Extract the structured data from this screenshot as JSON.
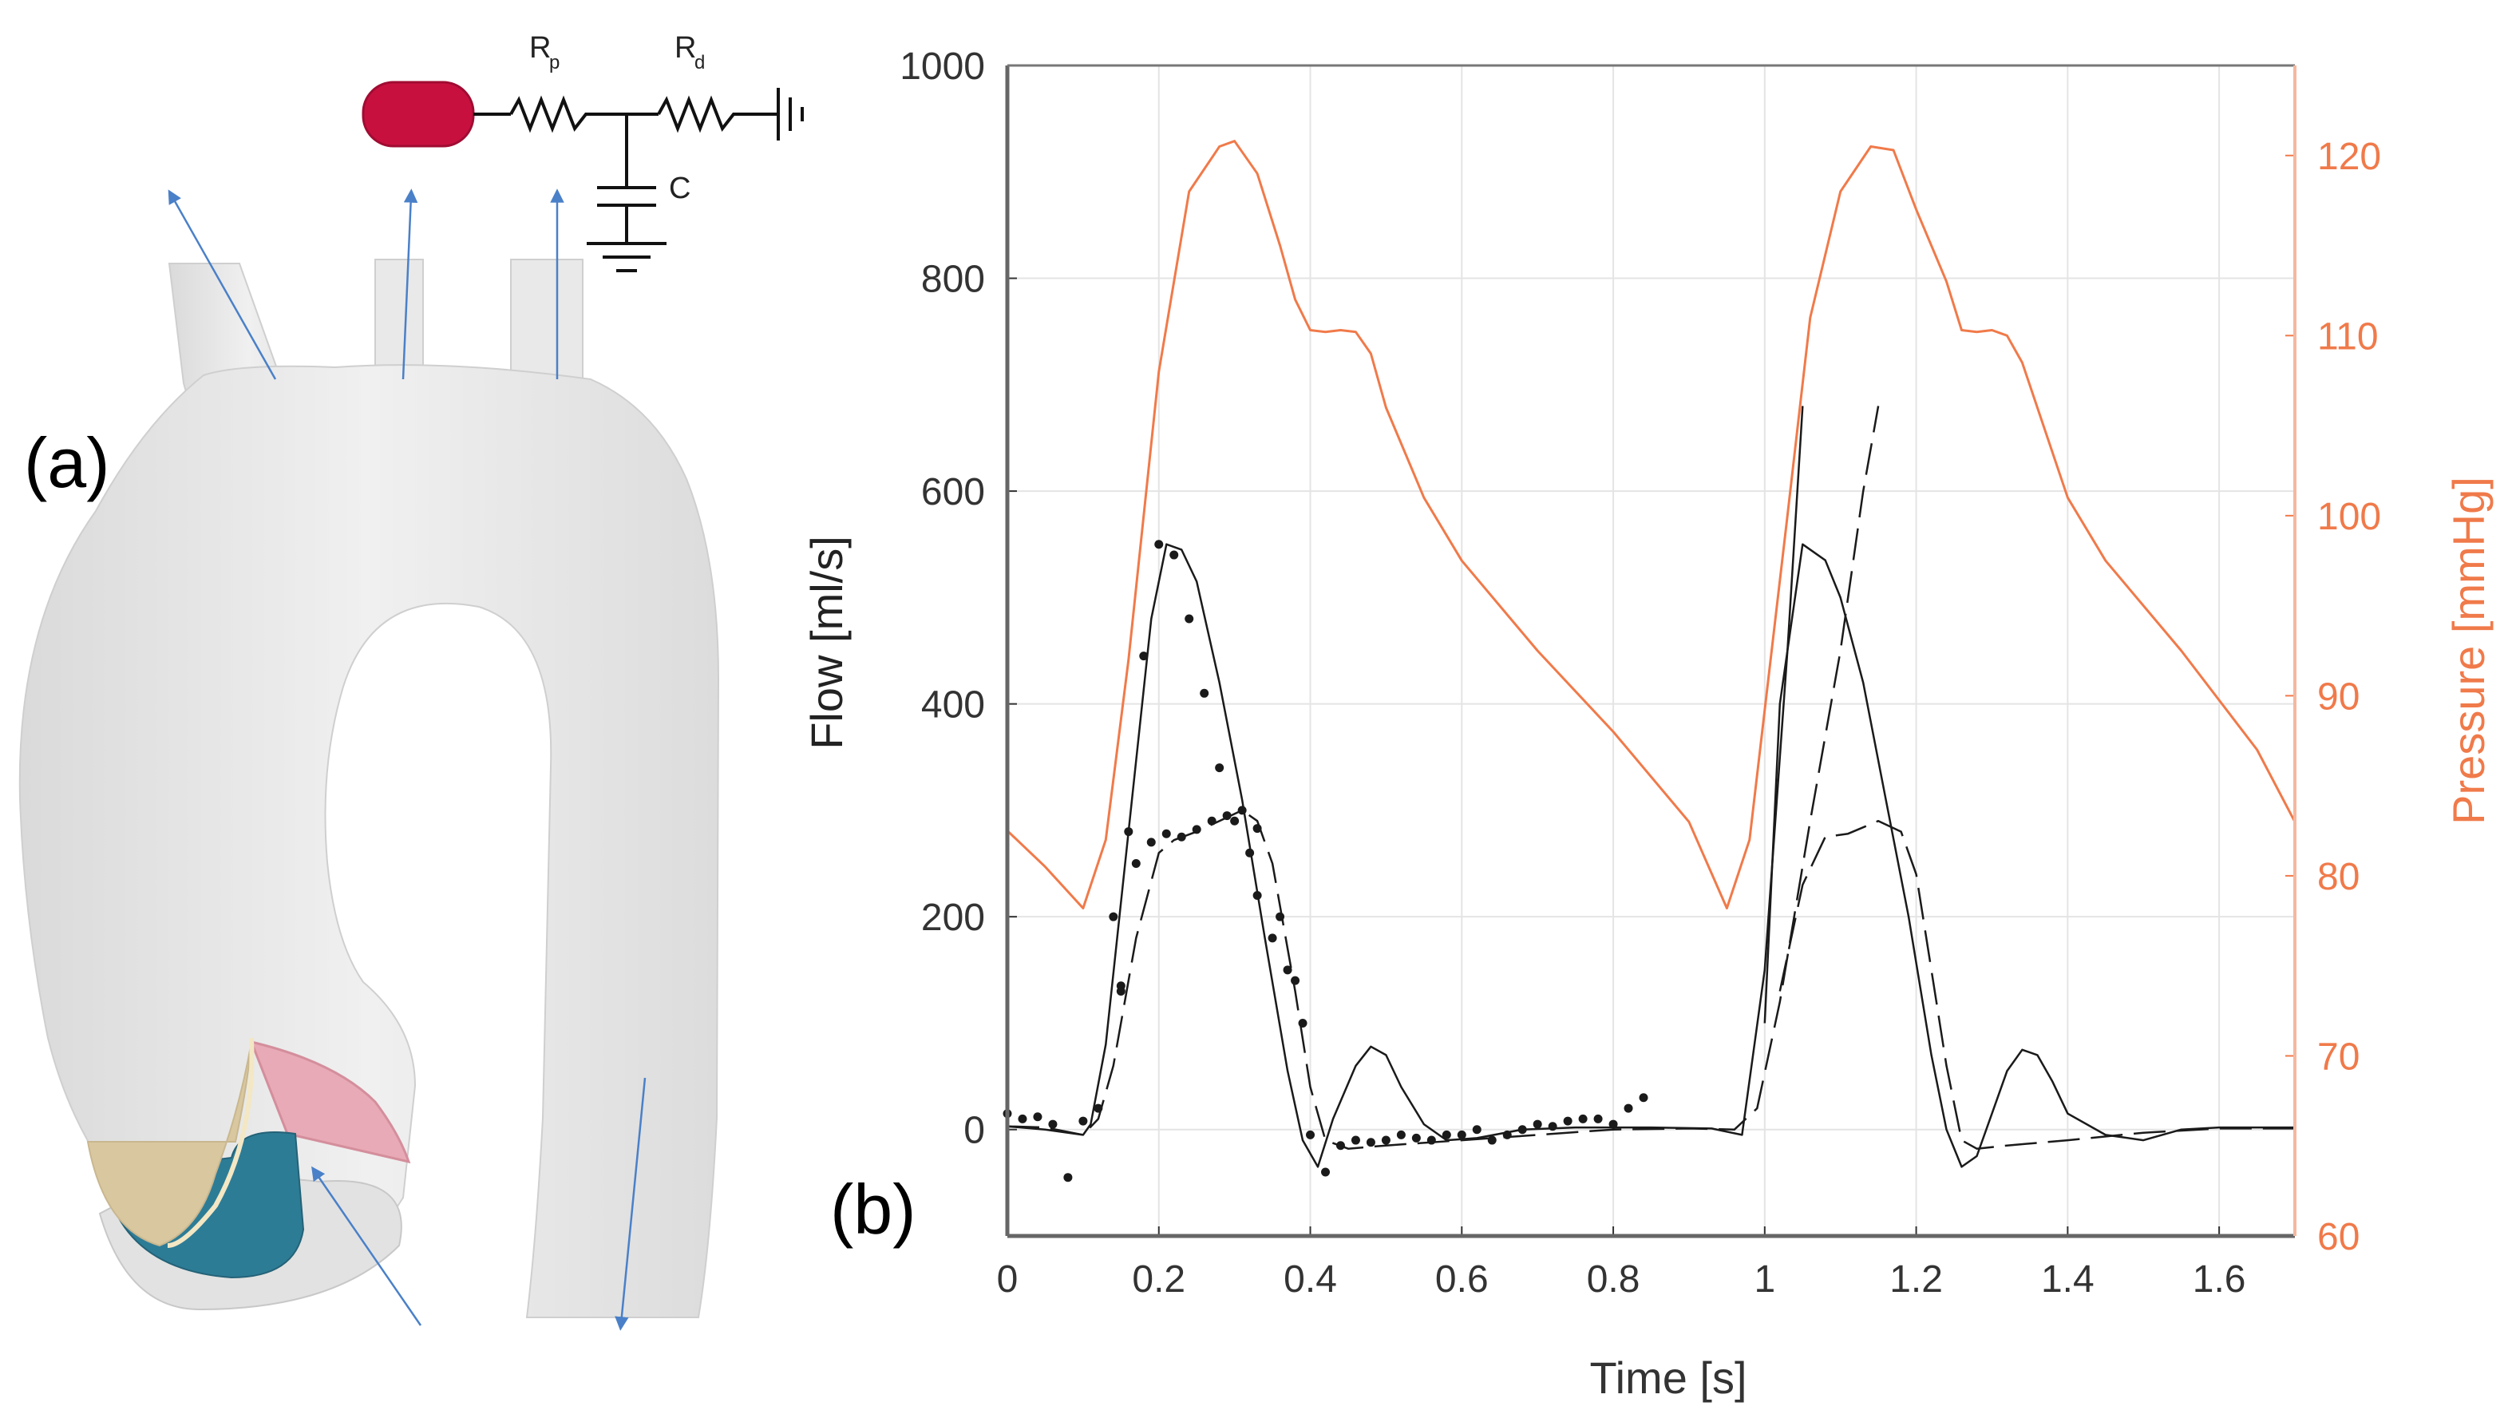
{
  "panel_a": {
    "label": "(a)",
    "circuit": {
      "rp_label": "R",
      "rp_sub": "p",
      "rd_label": "R",
      "rd_sub": "d",
      "c_label": "C"
    }
  },
  "panel_b": {
    "label": "(b)"
  },
  "colors": {
    "pressure": "#F07A4A",
    "flow": "#1a1a1a",
    "grid": "#e4e4e4",
    "vessel": "#e8e8e8",
    "arrow": "#4a80c8",
    "element": "#c8103f",
    "leaflet_pink": "#e8aab6",
    "leaflet_beige": "#d9c7a0",
    "leaflet_teal": "#2d7c96"
  },
  "chart_data": {
    "type": "line",
    "xlabel": "Time [s]",
    "ylabel": "Flow [ml/s]",
    "y2label": "Pressure [mmHg]",
    "xlim": [
      0,
      1.7
    ],
    "ylim": [
      -100,
      1000
    ],
    "y2lim": [
      60,
      125
    ],
    "xticks": [
      "0",
      "0.2",
      "0.4",
      "0.6",
      "0.8",
      "1",
      "1.2",
      "1.4",
      "1.6"
    ],
    "yticks": [
      "0",
      "200",
      "400",
      "600",
      "800",
      "1000"
    ],
    "y2ticks": [
      "60",
      "70",
      "80",
      "90",
      "100",
      "110",
      "120"
    ],
    "grid": true,
    "series": [
      {
        "name": "Pressure",
        "axis": "right",
        "x": [
          0,
          0.05,
          0.1,
          0.13,
          0.16,
          0.2,
          0.24,
          0.28,
          0.3,
          0.33,
          0.36,
          0.38,
          0.4,
          0.42,
          0.44,
          0.46,
          0.48,
          0.5,
          0.55,
          0.6,
          0.7,
          0.8,
          0.9,
          0.95,
          0.98,
          1.03,
          1.06,
          1.1,
          1.14,
          1.17,
          1.2,
          1.24,
          1.26,
          1.28,
          1.3,
          1.32,
          1.34,
          1.36,
          1.4,
          1.45,
          1.55,
          1.65,
          1.7
        ],
        "y": [
          82.5,
          80.5,
          78.2,
          82,
          92,
          108,
          118,
          120.5,
          120.8,
          119,
          115,
          112,
          110.3,
          110.2,
          110.3,
          110.2,
          109,
          106,
          101,
          97.5,
          92.5,
          88,
          83,
          78.2,
          82,
          100,
          111,
          118,
          120.5,
          120.3,
          117,
          113,
          110.3,
          110.2,
          110.3,
          110,
          108.5,
          106,
          101,
          97.5,
          92.5,
          87,
          83
        ]
      },
      {
        "name": "Flow (solid)",
        "axis": "left",
        "style": "solid",
        "x": [
          0,
          0.05,
          0.1,
          0.11,
          0.13,
          0.16,
          0.19,
          0.21,
          0.23,
          0.25,
          0.28,
          0.31,
          0.34,
          0.37,
          0.39,
          0.41,
          0.43,
          0.46,
          0.48,
          0.5,
          0.52,
          0.55,
          0.58,
          0.62,
          0.68,
          0.75,
          0.85,
          0.93,
          0.97,
          1.0,
          1.03,
          1.05
        ],
        "y": [
          3,
          0,
          -5,
          5,
          80,
          280,
          480,
          550,
          545,
          515,
          420,
          310,
          180,
          55,
          -10,
          -35,
          10,
          60,
          78,
          70,
          40,
          5,
          -10,
          -8,
          0,
          2,
          2,
          1,
          -5,
          150,
          450,
          680
        ]
      },
      {
        "name": "Flow (solid, cycle 2)",
        "axis": "left",
        "style": "solid",
        "x": [
          1.0,
          1.02,
          1.05,
          1.08,
          1.1,
          1.13,
          1.16,
          1.19,
          1.22,
          1.24,
          1.26,
          1.28,
          1.3,
          1.32,
          1.34,
          1.36,
          1.38,
          1.4,
          1.45,
          1.5,
          1.55,
          1.6,
          1.7
        ],
        "y": [
          100,
          400,
          550,
          535,
          500,
          420,
          310,
          200,
          70,
          0,
          -35,
          -25,
          15,
          55,
          75,
          70,
          45,
          15,
          -5,
          -10,
          0,
          2,
          2
        ]
      },
      {
        "name": "Flow (dashed)",
        "axis": "left",
        "style": "dashed",
        "x": [
          0,
          0.05,
          0.1,
          0.12,
          0.14,
          0.17,
          0.2,
          0.22,
          0.25,
          0.28,
          0.31,
          0.33,
          0.35,
          0.38,
          0.4,
          0.42,
          0.45,
          0.5,
          0.6,
          0.7,
          0.8,
          0.9,
          0.96,
          0.99,
          1.02,
          1.06,
          1.1,
          1.13,
          1.15
        ],
        "y": [
          3,
          2,
          -5,
          10,
          60,
          180,
          260,
          272,
          280,
          290,
          300,
          290,
          250,
          130,
          40,
          -10,
          -18,
          -15,
          -10,
          -5,
          0,
          1,
          0,
          20,
          120,
          290,
          450,
          600,
          680
        ]
      },
      {
        "name": "Flow (dashed, cycle 2)",
        "axis": "left",
        "style": "dashed",
        "x": [
          1.02,
          1.05,
          1.08,
          1.11,
          1.15,
          1.18,
          1.2,
          1.22,
          1.24,
          1.26,
          1.28,
          1.32,
          1.4,
          1.5,
          1.6,
          1.7
        ],
        "y": [
          130,
          230,
          275,
          278,
          290,
          280,
          240,
          150,
          60,
          -10,
          -18,
          -15,
          -10,
          -3,
          1,
          1
        ]
      },
      {
        "name": "Measured flow",
        "axis": "left",
        "style": "markers",
        "x": [
          0.0,
          0.02,
          0.04,
          0.06,
          0.08,
          0.1,
          0.12,
          0.14,
          0.15,
          0.16,
          0.18,
          0.2,
          0.22,
          0.24,
          0.26,
          0.28,
          0.3,
          0.32,
          0.33,
          0.35,
          0.37,
          0.39,
          0.4,
          0.42,
          0.44,
          0.46,
          0.48,
          0.5,
          0.52,
          0.54,
          0.56,
          0.58,
          0.6,
          0.62,
          0.64,
          0.66,
          0.68,
          0.7,
          0.72,
          0.74,
          0.76,
          0.78,
          0.8,
          0.82,
          0.84,
          0.15,
          0.17,
          0.19,
          0.21,
          0.23,
          0.25,
          0.27,
          0.29,
          0.31,
          0.33,
          0.36,
          0.38
        ],
        "y": [
          15,
          10,
          12,
          5,
          -45,
          8,
          20,
          200,
          135,
          280,
          445,
          550,
          540,
          480,
          410,
          340,
          290,
          260,
          220,
          180,
          150,
          100,
          -5,
          -40,
          -15,
          -10,
          -12,
          -10,
          -5,
          -8,
          -10,
          -5,
          -5,
          0,
          -10,
          -5,
          0,
          5,
          3,
          8,
          10,
          10,
          5,
          20,
          30,
          130,
          250,
          270,
          278,
          275,
          282,
          290,
          295,
          300,
          283,
          200,
          140
        ]
      }
    ]
  }
}
